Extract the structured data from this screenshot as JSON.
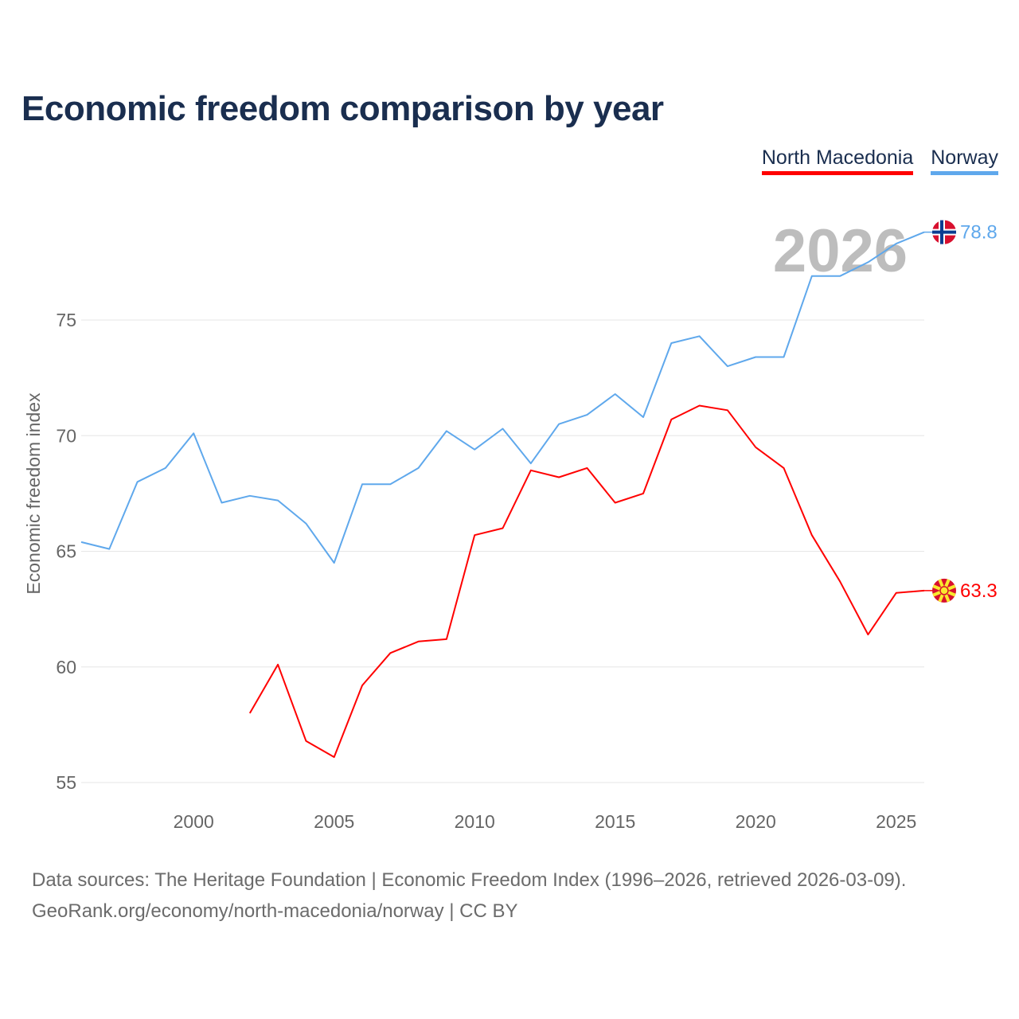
{
  "chart_data": {
    "type": "line",
    "title": "Economic freedom comparison by year",
    "xlabel": "",
    "ylabel": "Economic freedom index",
    "xlim": [
      1996,
      2026
    ],
    "ylim": [
      54,
      80
    ],
    "x_ticks": [
      2000,
      2005,
      2010,
      2015,
      2020,
      2025
    ],
    "y_ticks": [
      55,
      60,
      65,
      70,
      75
    ],
    "grid": true,
    "legend_position": "top-right",
    "year_watermark": "2026",
    "series": [
      {
        "name": "North Macedonia",
        "color": "#ff0000",
        "last_label": "63.3",
        "x": [
          2002,
          2003,
          2004,
          2005,
          2006,
          2007,
          2008,
          2009,
          2010,
          2011,
          2012,
          2013,
          2014,
          2015,
          2016,
          2017,
          2018,
          2019,
          2020,
          2021,
          2022,
          2023,
          2024,
          2025,
          2026
        ],
        "values": [
          58.0,
          60.1,
          56.8,
          56.1,
          59.2,
          60.6,
          61.1,
          61.2,
          65.7,
          66.0,
          68.5,
          68.2,
          68.6,
          67.1,
          67.5,
          70.7,
          71.3,
          71.1,
          69.5,
          68.6,
          65.7,
          63.7,
          61.4,
          63.2,
          63.3
        ]
      },
      {
        "name": "Norway",
        "color": "#5fa8ec",
        "last_label": "78.8",
        "x": [
          1996,
          1997,
          1998,
          1999,
          2000,
          2001,
          2002,
          2003,
          2004,
          2005,
          2006,
          2007,
          2008,
          2009,
          2010,
          2011,
          2012,
          2013,
          2014,
          2015,
          2016,
          2017,
          2018,
          2019,
          2020,
          2021,
          2022,
          2023,
          2024,
          2025,
          2026
        ],
        "values": [
          65.4,
          65.1,
          68.0,
          68.6,
          70.1,
          67.1,
          67.4,
          67.2,
          66.2,
          64.5,
          67.9,
          67.9,
          68.6,
          70.2,
          69.4,
          70.3,
          68.8,
          70.5,
          70.9,
          71.8,
          70.8,
          74.0,
          74.3,
          73.0,
          73.4,
          73.4,
          76.9,
          76.9,
          77.5,
          78.3,
          78.8
        ]
      }
    ]
  },
  "footer": {
    "line1": "Data sources: The Heritage Foundation | Economic Freedom Index (1996–2026, retrieved 2026-03-09).",
    "line2": "GeoRank.org/economy/north-macedonia/norway | CC BY"
  }
}
